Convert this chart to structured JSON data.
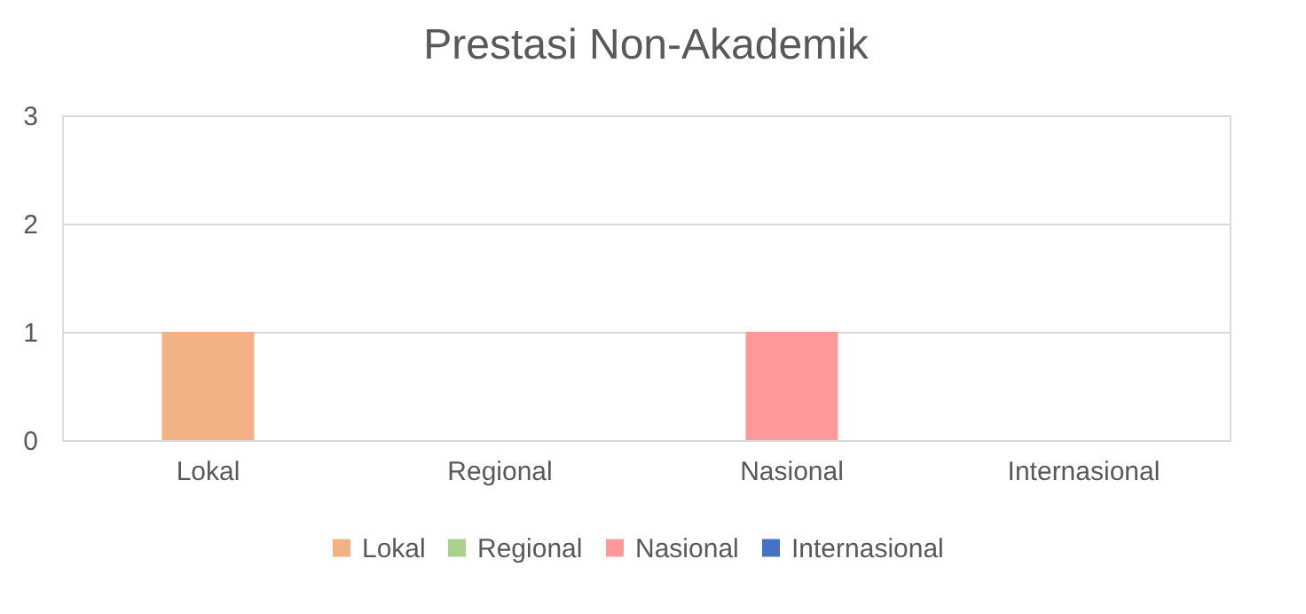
{
  "chart_data": {
    "type": "bar",
    "title": "Prestasi Non-Akademik",
    "categories": [
      "Lokal",
      "Regional",
      "Nasional",
      "Internasional"
    ],
    "series": [
      {
        "name": "Lokal",
        "color": "#f4b183",
        "values": [
          1,
          0,
          0,
          0
        ]
      },
      {
        "name": "Regional",
        "color": "#a9d18e",
        "values": [
          0,
          0,
          0,
          0
        ]
      },
      {
        "name": "Nasional",
        "color": "#ff9999",
        "values": [
          0,
          0,
          1,
          0
        ]
      },
      {
        "name": "Internasional",
        "color": "#4472c4",
        "values": [
          0,
          0,
          0,
          0
        ]
      }
    ],
    "stacked": true,
    "ylim": [
      0,
      3
    ],
    "yticks": [
      0,
      1,
      2,
      3
    ],
    "grid": "y",
    "legend": "bottom"
  }
}
